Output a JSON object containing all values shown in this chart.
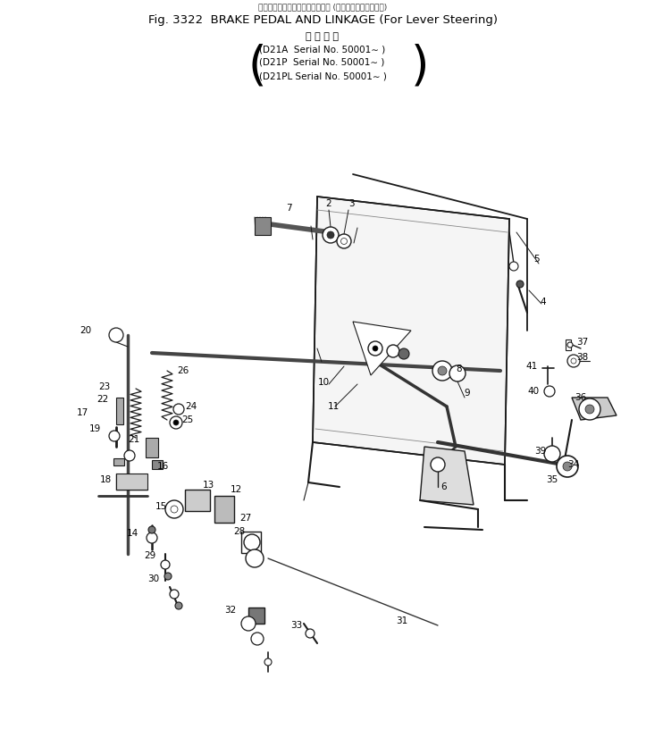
{
  "fig_line": "Fig. 3322  BRAKE PEDAL AND LINKAGE (For Lever Steering)",
  "japanese_top": "ブレーキペダルおよびリンケージ (レバーステアリング用)",
  "applicable_header": "適 用 号 機",
  "models": [
    "(D21A  Serial No. 50001∼ )",
    "(D21P  Serial No. 50001∼ )",
    "(D21PL Serial No. 50001∼ )"
  ],
  "bg_color": "#ffffff",
  "text_color": "#000000",
  "line_color": "#1a1a1a"
}
